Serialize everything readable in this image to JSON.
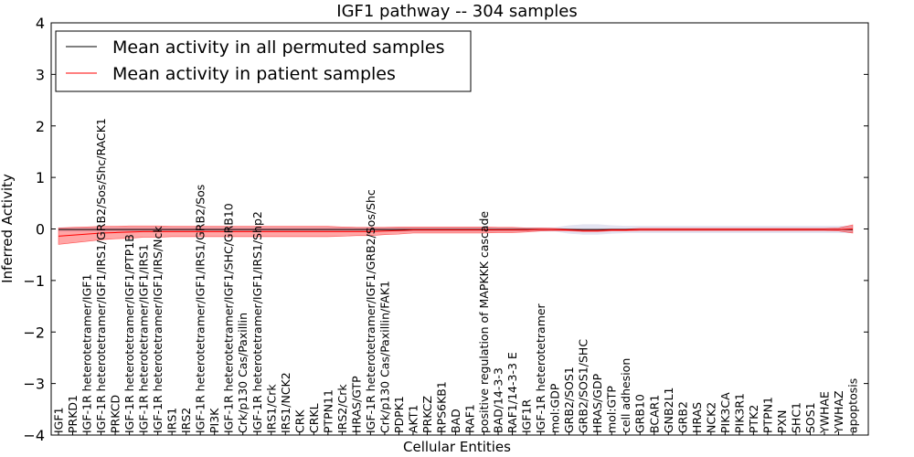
{
  "chart_data": {
    "type": "line",
    "title": "IGF1 pathway -- 304 samples",
    "xlabel": "Cellular Entities",
    "ylabel": "Inferred Activity",
    "ylim": [
      -4,
      4
    ],
    "yticks": [
      "−4",
      "−3",
      "−2",
      "−1",
      "0",
      "1",
      "2",
      "3",
      "4"
    ],
    "grid": false,
    "legend": {
      "position": "top-left",
      "entries": [
        {
          "label": "Mean activity in all permuted samples",
          "color": "#000000"
        },
        {
          "label": "Mean activity in patient samples",
          "color": "#ff0000"
        }
      ]
    },
    "categories": [
      "IGF1",
      "PRKD1",
      "IGF-1R heterotetramer/IGF1",
      "IGF-1R heterotetramer/IGF1/IRS1/GRB2/Sos/Shc/RACK1",
      "PRKCD",
      "IGF-1R heterotetramer/IGF1/PTP1B",
      "IGF-1R heterotetramer/IGF1/IRS1",
      "IGF-1R heterotetramer/IGF1/IRS/Nck",
      "IRS1",
      "IRS2",
      "IGF-1R heterotetramer/IGF1/IRS1/GRB2/Sos",
      "PI3K",
      "IGF-1R heterotetramer/IGF1/SHC/GRB10",
      "Crk/p130 Cas/Paxillin",
      "IGF-1R heterotetramer/IGF1/IRS1/Shp2",
      "IRS1/Crk",
      "IRS1/NCK2",
      "CRK",
      "CRKL",
      "PTPN11",
      "IRS2/Crk",
      "HRAS/GTP",
      "IGF-1R heterotetramer/IGF1/GRB2/Sos/Shc",
      "Crk/p130 Cas/Paxillin/FAK1",
      "PDPK1",
      "AKT1",
      "PRKCZ",
      "RPS6KB1",
      "BAD",
      "RAF1",
      "positive regulation of MAPKKK cascade",
      "BAD/14-3-3",
      "RAF1/14-3-3 E",
      "IGF1R",
      "IGF-1R heterotetramer",
      "mol:GDP",
      "GRB2/SOS1",
      "GRB2/SOS1/SHC",
      "HRAS/GDP",
      "mol:GTP",
      "cell adhesion",
      "GRB10",
      "BCAR1",
      "GNB2L1",
      "GRB2",
      "HRAS",
      "NCK2",
      "PIK3CA",
      "PIK3R1",
      "PTK2",
      "PTPN1",
      "PXN",
      "SHC1",
      "SOS1",
      "YWHAE",
      "YWHAZ",
      "apoptosis"
    ],
    "series": [
      {
        "name": "Mean activity in all permuted samples",
        "color": "#000000",
        "values": [
          -0.01,
          -0.01,
          -0.01,
          -0.01,
          -0.01,
          -0.01,
          -0.01,
          -0.01,
          -0.01,
          -0.01,
          -0.01,
          -0.01,
          -0.01,
          -0.01,
          -0.01,
          -0.01,
          -0.01,
          -0.01,
          -0.01,
          -0.01,
          -0.01,
          -0.01,
          -0.01,
          -0.01,
          -0.01,
          -0.01,
          -0.01,
          -0.01,
          -0.01,
          -0.01,
          -0.01,
          -0.01,
          -0.01,
          -0.01,
          -0.01,
          -0.01,
          -0.01,
          -0.01,
          -0.01,
          -0.01,
          -0.01,
          -0.01,
          -0.01,
          -0.01,
          -0.01,
          -0.01,
          -0.01,
          -0.01,
          -0.01,
          -0.01,
          -0.01,
          -0.01,
          -0.01,
          -0.01,
          -0.01,
          -0.01,
          -0.01
        ],
        "band": [
          0.04,
          0.04,
          0.04,
          0.04,
          0.04,
          0.04,
          0.04,
          0.04,
          0.04,
          0.04,
          0.04,
          0.04,
          0.04,
          0.04,
          0.04,
          0.04,
          0.04,
          0.04,
          0.04,
          0.04,
          0.04,
          0.04,
          0.04,
          0.04,
          0.04,
          0.04,
          0.04,
          0.04,
          0.04,
          0.04,
          0.04,
          0.04,
          0.04,
          0.04,
          0.04,
          0.04,
          0.08,
          0.1,
          0.1,
          0.08,
          0.07,
          0.07,
          0.07,
          0.07,
          0.07,
          0.07,
          0.07,
          0.07,
          0.07,
          0.07,
          0.07,
          0.07,
          0.07,
          0.07,
          0.07,
          0.07,
          0.07
        ]
      },
      {
        "name": "Mean activity in patient samples",
        "color": "#ff0000",
        "values": [
          -0.14,
          -0.12,
          -0.1,
          -0.08,
          -0.07,
          -0.06,
          -0.05,
          -0.05,
          -0.05,
          -0.05,
          -0.05,
          -0.05,
          -0.05,
          -0.05,
          -0.05,
          -0.05,
          -0.05,
          -0.05,
          -0.05,
          -0.05,
          -0.05,
          -0.05,
          -0.05,
          -0.04,
          -0.03,
          -0.02,
          -0.02,
          -0.02,
          -0.02,
          -0.02,
          -0.02,
          -0.02,
          -0.02,
          -0.02,
          -0.01,
          -0.01,
          -0.02,
          -0.03,
          -0.03,
          -0.02,
          -0.02,
          -0.01,
          -0.01,
          -0.01,
          -0.01,
          -0.01,
          -0.01,
          -0.01,
          -0.01,
          -0.01,
          -0.01,
          -0.01,
          -0.01,
          -0.01,
          -0.01,
          -0.01,
          0.0
        ],
        "band": [
          0.16,
          0.15,
          0.14,
          0.13,
          0.12,
          0.12,
          0.11,
          0.11,
          0.1,
          0.1,
          0.1,
          0.1,
          0.1,
          0.1,
          0.1,
          0.1,
          0.1,
          0.1,
          0.1,
          0.1,
          0.09,
          0.08,
          0.08,
          0.07,
          0.07,
          0.06,
          0.06,
          0.06,
          0.06,
          0.06,
          0.06,
          0.05,
          0.05,
          0.04,
          0.03,
          0.02,
          0.02,
          0.02,
          0.02,
          0.02,
          0.02,
          0.02,
          0.02,
          0.02,
          0.02,
          0.02,
          0.02,
          0.02,
          0.02,
          0.02,
          0.02,
          0.02,
          0.02,
          0.02,
          0.02,
          0.03,
          0.08
        ]
      }
    ]
  }
}
